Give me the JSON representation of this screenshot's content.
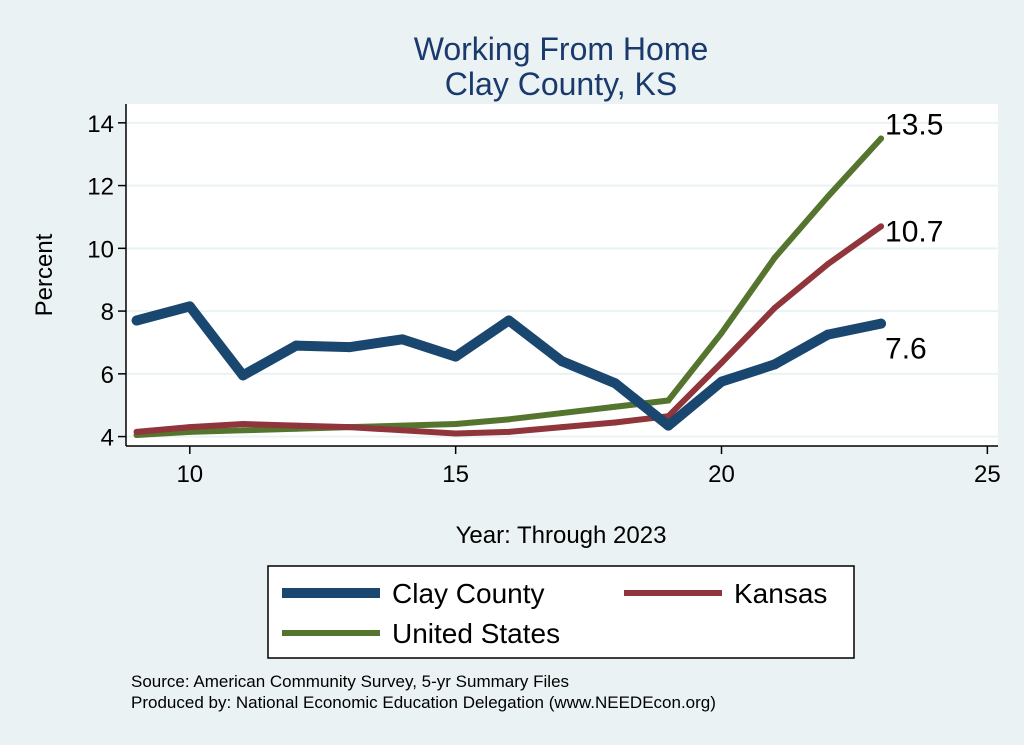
{
  "chart_data": {
    "type": "line",
    "title": "Working From Home",
    "subtitle": "Clay County, KS",
    "xlabel": "Year: Through 2023",
    "ylabel": "Percent",
    "xlim": [
      8.8,
      25.2
    ],
    "ylim": [
      3.7,
      14.6
    ],
    "xticks": [
      10,
      15,
      20,
      25
    ],
    "yticks": [
      4,
      6,
      8,
      10,
      12,
      14
    ],
    "grid": true,
    "x": [
      9,
      10,
      11,
      12,
      13,
      14,
      15,
      16,
      17,
      18,
      19,
      20,
      21,
      22,
      23
    ],
    "series": [
      {
        "name": "Clay County",
        "color": "#1a476f",
        "values": [
          7.7,
          8.15,
          5.95,
          6.9,
          6.85,
          7.1,
          6.55,
          7.7,
          6.4,
          5.7,
          4.35,
          5.75,
          6.3,
          7.25,
          7.6
        ],
        "end_label": "7.6"
      },
      {
        "name": "Kansas",
        "color": "#90353b",
        "values": [
          4.15,
          4.3,
          4.4,
          4.35,
          4.3,
          4.2,
          4.1,
          4.15,
          4.3,
          4.45,
          4.65,
          6.35,
          8.1,
          9.5,
          10.7
        ],
        "end_label": "10.7"
      },
      {
        "name": "United States",
        "color": "#55752f",
        "values": [
          4.05,
          4.15,
          4.2,
          4.25,
          4.3,
          4.35,
          4.4,
          4.55,
          4.75,
          4.95,
          5.15,
          7.3,
          9.7,
          11.65,
          13.5
        ],
        "end_label": "13.5"
      }
    ],
    "legend": [
      "Clay County",
      "Kansas",
      "United States"
    ],
    "notes": [
      "Source: American Community Survey, 5-yr Summary Files",
      "Produced by: National Economic Education Delegation (www.NEEDEcon.org)"
    ]
  }
}
